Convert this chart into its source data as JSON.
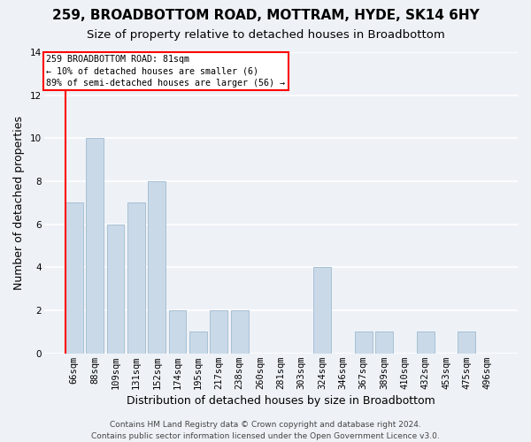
{
  "title": "259, BROADBOTTOM ROAD, MOTTRAM, HYDE, SK14 6HY",
  "subtitle": "Size of property relative to detached houses in Broadbottom",
  "xlabel": "Distribution of detached houses by size in Broadbottom",
  "ylabel": "Number of detached properties",
  "categories": [
    "66sqm",
    "88sqm",
    "109sqm",
    "131sqm",
    "152sqm",
    "174sqm",
    "195sqm",
    "217sqm",
    "238sqm",
    "260sqm",
    "281sqm",
    "303sqm",
    "324sqm",
    "346sqm",
    "367sqm",
    "389sqm",
    "410sqm",
    "432sqm",
    "453sqm",
    "475sqm",
    "496sqm"
  ],
  "values": [
    7,
    10,
    6,
    7,
    8,
    2,
    1,
    2,
    2,
    0,
    0,
    0,
    4,
    0,
    1,
    1,
    0,
    1,
    0,
    1,
    0
  ],
  "bar_color": "#c9d9e8",
  "bar_edgecolor": "#a8c0d4",
  "annotation_box_text": "259 BROADBOTTOM ROAD: 81sqm\n← 10% of detached houses are smaller (6)\n89% of semi-detached houses are larger (56) →",
  "annotation_box_color": "white",
  "annotation_box_edgecolor": "red",
  "vline_color": "red",
  "ylim": [
    0,
    14
  ],
  "yticks": [
    0,
    2,
    4,
    6,
    8,
    10,
    12,
    14
  ],
  "footer": "Contains HM Land Registry data © Crown copyright and database right 2024.\nContains public sector information licensed under the Open Government Licence v3.0.",
  "title_fontsize": 11,
  "subtitle_fontsize": 9.5,
  "xlabel_fontsize": 9,
  "ylabel_fontsize": 9,
  "tick_fontsize": 7.5,
  "footer_fontsize": 6.5,
  "bg_color": "#eef2f7",
  "grid_color": "#ffffff"
}
